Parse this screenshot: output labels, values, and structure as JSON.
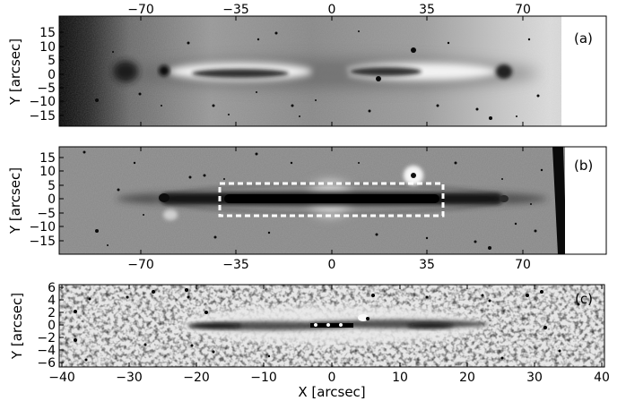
{
  "panels": [
    {
      "id": "a",
      "tag": "(a)",
      "ylabel": "Y [arcsec]",
      "xticks": [
        "−70",
        "−35",
        "0",
        "35",
        "70"
      ],
      "yticks": [
        "15",
        "10",
        "5",
        "0",
        "−5",
        "−10",
        "−15"
      ]
    },
    {
      "id": "b",
      "tag": "(b)",
      "ylabel": "Y [arcsec]",
      "xticks": [
        "−70",
        "−35",
        "0",
        "35",
        "70"
      ],
      "yticks": [
        "15",
        "10",
        "5",
        "0",
        "−5",
        "−10",
        "−15"
      ]
    },
    {
      "id": "c",
      "tag": "(c)",
      "ylabel": "Y [arcsec]",
      "xlabel": "X [arcsec]",
      "xticks": [
        "−40",
        "−30",
        "−20",
        "−10",
        "0",
        "10",
        "20",
        "30",
        "40"
      ],
      "yticks": [
        "6",
        "4",
        "2",
        "0",
        "−2",
        "−4",
        "−6"
      ]
    }
  ]
}
